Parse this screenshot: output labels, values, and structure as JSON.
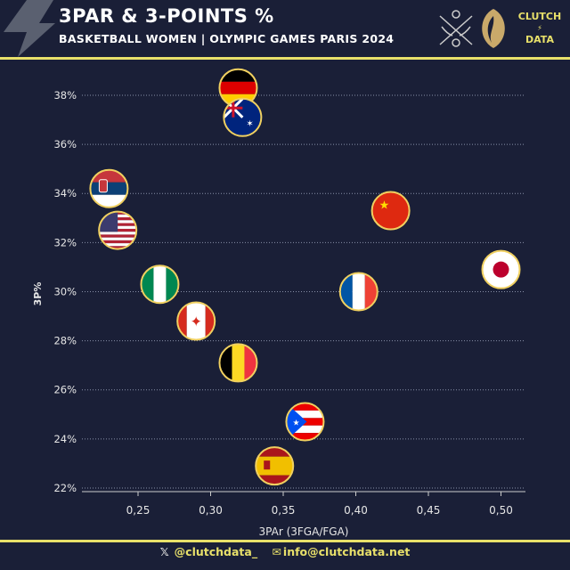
{
  "header": {
    "title": "3PAR & 3-POINTS %",
    "subtitle": "BASKETBALL WOMEN | OLYMPIC GAMES PARIS 2024",
    "logo_text_top": "CLUTCH",
    "logo_text_bottom": "DATA"
  },
  "footer": {
    "twitter": "@clutchdata_",
    "email": "info@clutchdata.net"
  },
  "colors": {
    "background": "#1a1f37",
    "accent": "#e8e06a",
    "marker_border": "#f0d060"
  },
  "chart_data": {
    "type": "scatter",
    "xlabel": "3PAr (3FGA/FGA)",
    "ylabel": "3P%",
    "xlim": [
      0.21,
      0.52
    ],
    "ylim": [
      21.8,
      39
    ],
    "xticks": [
      "0,25",
      "0,30",
      "0,35",
      "0,40",
      "0,45",
      "0,50"
    ],
    "xtick_values": [
      0.25,
      0.3,
      0.35,
      0.4,
      0.45,
      0.5
    ],
    "yticks": [
      "22%",
      "24%",
      "26%",
      "28%",
      "30%",
      "32%",
      "34%",
      "36%",
      "38%"
    ],
    "ytick_values": [
      22,
      24,
      26,
      28,
      30,
      32,
      34,
      36,
      38
    ],
    "grid": "horizontal-dotted",
    "points": [
      {
        "team": "Germany",
        "flag": "germany",
        "x": 0.319,
        "y": 38.3
      },
      {
        "team": "Australia",
        "flag": "australia",
        "x": 0.322,
        "y": 37.1
      },
      {
        "team": "Serbia",
        "flag": "serbia",
        "x": 0.23,
        "y": 34.2
      },
      {
        "team": "USA",
        "flag": "usa",
        "x": 0.236,
        "y": 32.5
      },
      {
        "team": "China",
        "flag": "china",
        "x": 0.424,
        "y": 33.3
      },
      {
        "team": "Japan",
        "flag": "japan",
        "x": 0.5,
        "y": 30.9
      },
      {
        "team": "Nigeria",
        "flag": "nigeria",
        "x": 0.265,
        "y": 30.3
      },
      {
        "team": "France",
        "flag": "france",
        "x": 0.402,
        "y": 30.0
      },
      {
        "team": "Canada",
        "flag": "canada",
        "x": 0.29,
        "y": 28.8
      },
      {
        "team": "Belgium",
        "flag": "belgium",
        "x": 0.319,
        "y": 27.1
      },
      {
        "team": "Puerto Rico",
        "flag": "puerto-rico",
        "x": 0.365,
        "y": 24.7
      },
      {
        "team": "Spain",
        "flag": "spain",
        "x": 0.344,
        "y": 22.9
      }
    ]
  }
}
